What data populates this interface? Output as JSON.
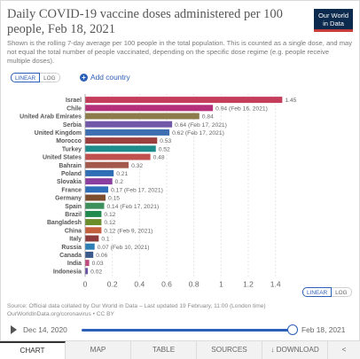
{
  "header": {
    "title": "Daily COVID-19 vaccine doses administered per 100 people, Feb 18, 2021",
    "subtitle": "Shown is the rolling 7-day average per 100 people in the total population. This is counted as a single dose, and may not equal the total number of people vaccinated, depending on the specific dose regime (e.g. people receive multiple doses).",
    "logo_line1": "Our World",
    "logo_line2": "in Data"
  },
  "controls": {
    "linear_label": "LINEAR",
    "log_label": "LOG",
    "add_country_label": "Add country"
  },
  "footer": {
    "source_line1": "Source: Official data collated by Our World in Data – Last updated 19 February, 11:00 (London time)",
    "source_line2": "OurWorldInData.org/coronavirus • CC BY"
  },
  "timeline": {
    "start_label": "Dec 14, 2020",
    "end_label": "Feb 18, 2021"
  },
  "tabs": [
    {
      "label": "CHART",
      "active": true
    },
    {
      "label": "MAP"
    },
    {
      "label": "TABLE"
    },
    {
      "label": "SOURCES"
    },
    {
      "label": "↓ DOWNLOAD"
    },
    {
      "label": "<"
    }
  ],
  "chart_data": {
    "type": "bar",
    "orientation": "horizontal",
    "xlim": [
      0,
      1.5
    ],
    "x_ticks": [
      "0",
      "0.2",
      "0.4",
      "0.6",
      "0.8",
      "1",
      "1.2",
      "1.4"
    ],
    "grid": true,
    "categories": [
      "Israel",
      "Chile",
      "United Arab Emirates",
      "Serbia",
      "United Kingdom",
      "Morocco",
      "Turkey",
      "United States",
      "Bahrain",
      "Poland",
      "Slovakia",
      "France",
      "Germany",
      "Spain",
      "Brazil",
      "Bangladesh",
      "China",
      "Italy",
      "Russia",
      "Canada",
      "India",
      "Indonesia"
    ],
    "values": [
      1.45,
      0.94,
      0.84,
      0.64,
      0.62,
      0.53,
      0.52,
      0.48,
      0.32,
      0.21,
      0.2,
      0.17,
      0.15,
      0.14,
      0.12,
      0.12,
      0.12,
      0.1,
      0.07,
      0.06,
      0.03,
      0.02
    ],
    "value_labels": [
      "1.45",
      "0.94 (Feb 16, 2021)",
      "0.84",
      "0.64 (Feb 17, 2021)",
      "0.62 (Feb 17, 2021)",
      "0.53",
      "0.52",
      "0.48",
      "0.32",
      "0.21",
      "0.2",
      "0.17 (Feb 17, 2021)",
      "0.15",
      "0.14 (Feb 17, 2021)",
      "0.12",
      "0.12",
      "0.12 (Feb 9, 2021)",
      "0.1",
      "0.07 (Feb 10, 2021)",
      "0.06",
      "0.03",
      "0.02"
    ],
    "colors": [
      "#c43d5b",
      "#b5307a",
      "#8d7b4c",
      "#7057a8",
      "#3d6fb0",
      "#9c3f3f",
      "#1f8c8c",
      "#c0504d",
      "#a2594c",
      "#2f6db5",
      "#8a3fa0",
      "#2e6db8",
      "#7d4e2e",
      "#3d8f5c",
      "#1e8a4d",
      "#6a8e2b",
      "#c5603f",
      "#8e3b3b",
      "#2e7fb5",
      "#3a5a8c",
      "#c04a7c",
      "#6a52a8"
    ]
  }
}
